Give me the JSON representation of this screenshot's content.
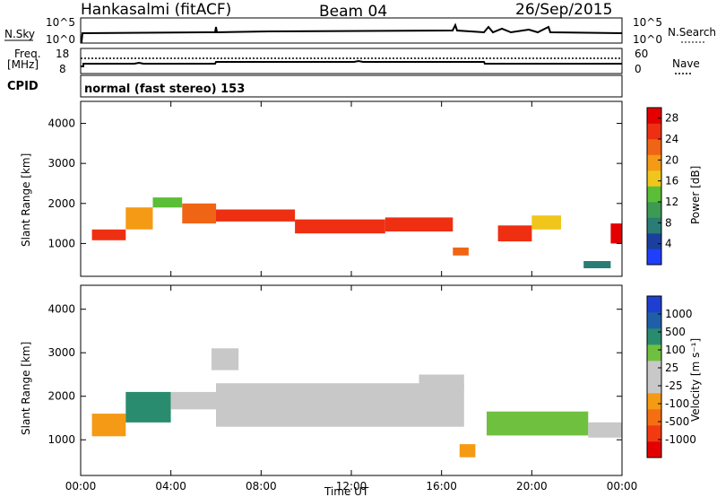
{
  "header": {
    "station": "Hankasalmi (fitACF)",
    "beam": "Beam 04",
    "date": "26/Sep/2015"
  },
  "strip_panels": {
    "nsky_label": "N.Sky",
    "nsky_ticks": [
      "10^5",
      "10^0"
    ],
    "nsearch_label": "N.Search",
    "nsearch_ticks": [
      "10^5",
      "10^0"
    ],
    "freq_label_1": "Freq.",
    "freq_label_2": "[MHz]",
    "freq_ticks": [
      "18",
      "8"
    ],
    "nave_label": "Nave",
    "nave_ticks": [
      "60",
      "0"
    ],
    "cpid_label": "CPID",
    "cpid_text": "normal (fast stereo) 153"
  },
  "colors": {
    "power": [
      "#1f3fff",
      "#1b3f9f",
      "#2a7c74",
      "#3c9a53",
      "#5abe37",
      "#f0c61c",
      "#f59a14",
      "#f06515",
      "#ee2f12",
      "#e40000"
    ],
    "velocity": [
      "#e40000",
      "#f23a12",
      "#f56f12",
      "#f59a14",
      "#c8c8c8",
      "#c8c8c8",
      "#70c040",
      "#2a8c6f",
      "#1f5fa8",
      "#1f3fd0"
    ]
  },
  "chart_data": [
    {
      "type": "heatmap",
      "name": "power-panel",
      "xlabel": "",
      "ylabel": "Slant Range [km]",
      "xlim": [
        0,
        24
      ],
      "ylim": [
        180,
        4550
      ],
      "yticks": [
        "1000",
        "2000",
        "3000",
        "4000"
      ],
      "xticks": [
        "00:00",
        "04:00",
        "08:00",
        "12:00",
        "16:00",
        "20:00",
        "00:00"
      ],
      "colorbar_label": "Power [dB]",
      "colorbar_ticks": [
        "4",
        "8",
        "12",
        "16",
        "20",
        "24",
        "28"
      ],
      "colorbar_range": [
        0,
        30
      ],
      "regions": [
        {
          "t": [
            0.5,
            2.0
          ],
          "r": [
            1080,
            1350
          ],
          "v": 26
        },
        {
          "t": [
            2.0,
            3.2
          ],
          "r": [
            1350,
            1900
          ],
          "v": 20
        },
        {
          "t": [
            3.2,
            4.5
          ],
          "r": [
            1900,
            2150
          ],
          "v": 14
        },
        {
          "t": [
            4.5,
            6.0
          ],
          "r": [
            1500,
            2000
          ],
          "v": 22
        },
        {
          "t": [
            6.0,
            9.5
          ],
          "r": [
            1550,
            1850
          ],
          "v": 25
        },
        {
          "t": [
            9.5,
            13.5
          ],
          "r": [
            1250,
            1600
          ],
          "v": 24
        },
        {
          "t": [
            13.5,
            16.5
          ],
          "r": [
            1300,
            1650
          ],
          "v": 26
        },
        {
          "t": [
            16.5,
            17.2
          ],
          "r": [
            700,
            900
          ],
          "v": 22
        },
        {
          "t": [
            18.5,
            20.0
          ],
          "r": [
            1050,
            1450
          ],
          "v": 25
        },
        {
          "t": [
            20.0,
            21.3
          ],
          "r": [
            1350,
            1700
          ],
          "v": 16
        },
        {
          "t": [
            22.3,
            23.5
          ],
          "r": [
            380,
            560
          ],
          "v": 6
        },
        {
          "t": [
            23.5,
            24.0
          ],
          "r": [
            1000,
            1500
          ],
          "v": 28
        }
      ]
    },
    {
      "type": "heatmap",
      "name": "velocity-panel",
      "xlabel": "Time UT",
      "ylabel": "Slant Range [km]",
      "xlim": [
        0,
        24
      ],
      "ylim": [
        180,
        4550
      ],
      "yticks": [
        "1000",
        "2000",
        "3000",
        "4000"
      ],
      "xticks": [
        "00:00",
        "04:00",
        "08:00",
        "12:00",
        "16:00",
        "20:00",
        "00:00"
      ],
      "colorbar_label": "Velocity [m s⁻¹]",
      "colorbar_ticks": [
        "1000",
        "500",
        "100",
        "25",
        "-25",
        "-100",
        "-500",
        "-1000"
      ],
      "colorbar_range": [
        -1000,
        1000
      ],
      "regions": [
        {
          "t": [
            0.5,
            2.0
          ],
          "r": [
            1080,
            1600
          ],
          "v": -300
        },
        {
          "t": [
            2.0,
            4.0
          ],
          "r": [
            1400,
            2100
          ],
          "v": 400
        },
        {
          "t": [
            4.0,
            6.0
          ],
          "r": [
            1700,
            2100
          ],
          "v": 0
        },
        {
          "t": [
            5.8,
            7.0
          ],
          "r": [
            2600,
            3100
          ],
          "v": -200
        },
        {
          "t": [
            6.0,
            17.0
          ],
          "r": [
            1300,
            2300
          ],
          "v": 0
        },
        {
          "t": [
            15.0,
            17.0
          ],
          "r": [
            2150,
            2500
          ],
          "v": -200
        },
        {
          "t": [
            16.8,
            17.5
          ],
          "r": [
            600,
            900
          ],
          "v": -300
        },
        {
          "t": [
            18.0,
            22.5
          ],
          "r": [
            1100,
            1650
          ],
          "v": 350
        },
        {
          "t": [
            22.5,
            24.0
          ],
          "r": [
            1050,
            1400
          ],
          "v": -100
        }
      ]
    }
  ]
}
